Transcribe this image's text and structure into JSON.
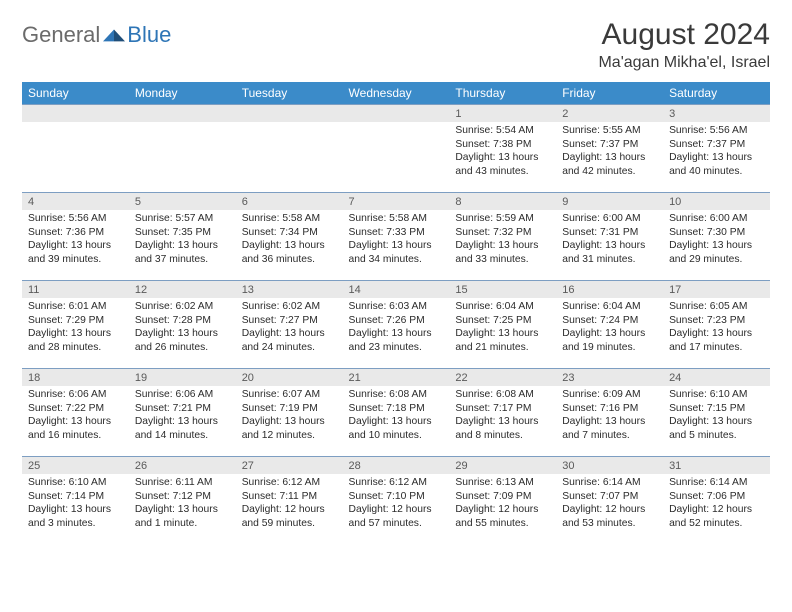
{
  "logo": {
    "general": "General",
    "blue": "Blue"
  },
  "title": "August 2024",
  "location": "Ma'agan Mikha'el, Israel",
  "colors": {
    "header_bg": "#3b8bc9",
    "header_text": "#ffffff",
    "daynum_bg": "#e9e9e9",
    "border": "#7d9ec2"
  },
  "dow": [
    "Sunday",
    "Monday",
    "Tuesday",
    "Wednesday",
    "Thursday",
    "Friday",
    "Saturday"
  ],
  "weeks": [
    {
      "nums": [
        "",
        "",
        "",
        "",
        "1",
        "2",
        "3"
      ],
      "details": [
        null,
        null,
        null,
        null,
        {
          "sunrise": "5:54 AM",
          "sunset": "7:38 PM",
          "daylight": "13 hours and 43 minutes."
        },
        {
          "sunrise": "5:55 AM",
          "sunset": "7:37 PM",
          "daylight": "13 hours and 42 minutes."
        },
        {
          "sunrise": "5:56 AM",
          "sunset": "7:37 PM",
          "daylight": "13 hours and 40 minutes."
        }
      ]
    },
    {
      "nums": [
        "4",
        "5",
        "6",
        "7",
        "8",
        "9",
        "10"
      ],
      "details": [
        {
          "sunrise": "5:56 AM",
          "sunset": "7:36 PM",
          "daylight": "13 hours and 39 minutes."
        },
        {
          "sunrise": "5:57 AM",
          "sunset": "7:35 PM",
          "daylight": "13 hours and 37 minutes."
        },
        {
          "sunrise": "5:58 AM",
          "sunset": "7:34 PM",
          "daylight": "13 hours and 36 minutes."
        },
        {
          "sunrise": "5:58 AM",
          "sunset": "7:33 PM",
          "daylight": "13 hours and 34 minutes."
        },
        {
          "sunrise": "5:59 AM",
          "sunset": "7:32 PM",
          "daylight": "13 hours and 33 minutes."
        },
        {
          "sunrise": "6:00 AM",
          "sunset": "7:31 PM",
          "daylight": "13 hours and 31 minutes."
        },
        {
          "sunrise": "6:00 AM",
          "sunset": "7:30 PM",
          "daylight": "13 hours and 29 minutes."
        }
      ]
    },
    {
      "nums": [
        "11",
        "12",
        "13",
        "14",
        "15",
        "16",
        "17"
      ],
      "details": [
        {
          "sunrise": "6:01 AM",
          "sunset": "7:29 PM",
          "daylight": "13 hours and 28 minutes."
        },
        {
          "sunrise": "6:02 AM",
          "sunset": "7:28 PM",
          "daylight": "13 hours and 26 minutes."
        },
        {
          "sunrise": "6:02 AM",
          "sunset": "7:27 PM",
          "daylight": "13 hours and 24 minutes."
        },
        {
          "sunrise": "6:03 AM",
          "sunset": "7:26 PM",
          "daylight": "13 hours and 23 minutes."
        },
        {
          "sunrise": "6:04 AM",
          "sunset": "7:25 PM",
          "daylight": "13 hours and 21 minutes."
        },
        {
          "sunrise": "6:04 AM",
          "sunset": "7:24 PM",
          "daylight": "13 hours and 19 minutes."
        },
        {
          "sunrise": "6:05 AM",
          "sunset": "7:23 PM",
          "daylight": "13 hours and 17 minutes."
        }
      ]
    },
    {
      "nums": [
        "18",
        "19",
        "20",
        "21",
        "22",
        "23",
        "24"
      ],
      "details": [
        {
          "sunrise": "6:06 AM",
          "sunset": "7:22 PM",
          "daylight": "13 hours and 16 minutes."
        },
        {
          "sunrise": "6:06 AM",
          "sunset": "7:21 PM",
          "daylight": "13 hours and 14 minutes."
        },
        {
          "sunrise": "6:07 AM",
          "sunset": "7:19 PM",
          "daylight": "13 hours and 12 minutes."
        },
        {
          "sunrise": "6:08 AM",
          "sunset": "7:18 PM",
          "daylight": "13 hours and 10 minutes."
        },
        {
          "sunrise": "6:08 AM",
          "sunset": "7:17 PM",
          "daylight": "13 hours and 8 minutes."
        },
        {
          "sunrise": "6:09 AM",
          "sunset": "7:16 PM",
          "daylight": "13 hours and 7 minutes."
        },
        {
          "sunrise": "6:10 AM",
          "sunset": "7:15 PM",
          "daylight": "13 hours and 5 minutes."
        }
      ]
    },
    {
      "nums": [
        "25",
        "26",
        "27",
        "28",
        "29",
        "30",
        "31"
      ],
      "details": [
        {
          "sunrise": "6:10 AM",
          "sunset": "7:14 PM",
          "daylight": "13 hours and 3 minutes."
        },
        {
          "sunrise": "6:11 AM",
          "sunset": "7:12 PM",
          "daylight": "13 hours and 1 minute."
        },
        {
          "sunrise": "6:12 AM",
          "sunset": "7:11 PM",
          "daylight": "12 hours and 59 minutes."
        },
        {
          "sunrise": "6:12 AM",
          "sunset": "7:10 PM",
          "daylight": "12 hours and 57 minutes."
        },
        {
          "sunrise": "6:13 AM",
          "sunset": "7:09 PM",
          "daylight": "12 hours and 55 minutes."
        },
        {
          "sunrise": "6:14 AM",
          "sunset": "7:07 PM",
          "daylight": "12 hours and 53 minutes."
        },
        {
          "sunrise": "6:14 AM",
          "sunset": "7:06 PM",
          "daylight": "12 hours and 52 minutes."
        }
      ]
    }
  ],
  "labels": {
    "sunrise": "Sunrise:",
    "sunset": "Sunset:",
    "daylight": "Daylight:"
  }
}
